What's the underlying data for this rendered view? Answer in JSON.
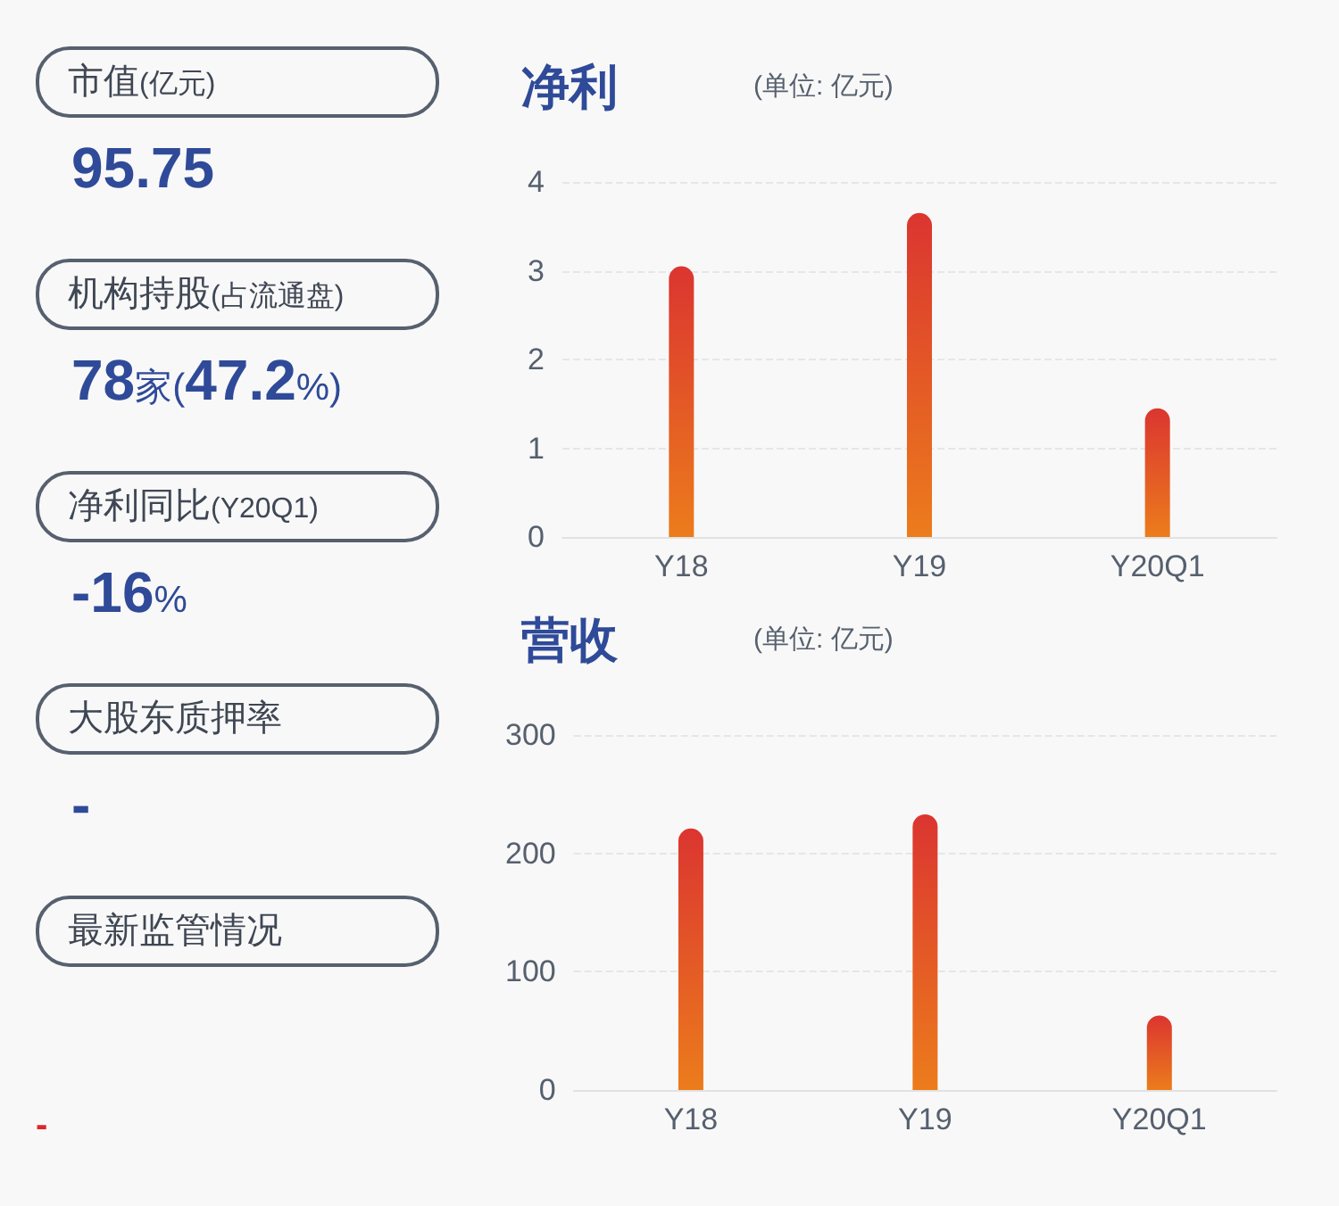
{
  "chart_data": [
    {
      "type": "other",
      "annotations": [
        "市值(亿元)",
        "95.75",
        "机构持股(占流通盘)",
        "78家(47.2%)",
        "净利同比(Y20Q1)",
        "-16%",
        "大股东质押率",
        "-",
        "最新监管情况",
        "-"
      ]
    },
    {
      "type": "bar",
      "title": "净利",
      "subtitle": "(单位: 亿元)",
      "categories": [
        "Y18",
        "Y19",
        "Y20Q1"
      ],
      "values": [
        3.05,
        3.65,
        1.45
      ],
      "color": "#db3530",
      "ylim": [
        0,
        4
      ],
      "yticks": [
        0,
        1,
        2,
        3,
        4
      ],
      "grid": "y"
    },
    {
      "type": "bar",
      "title": "营收",
      "subtitle": "(单位: 亿元)",
      "categories": [
        "Y18",
        "Y19",
        "Y20Q1"
      ],
      "values": [
        221,
        233,
        63
      ],
      "color": "#db3530",
      "ylim": [
        0,
        300
      ],
      "yticks": [
        0,
        100,
        200,
        300
      ],
      "grid": "y"
    }
  ]
}
